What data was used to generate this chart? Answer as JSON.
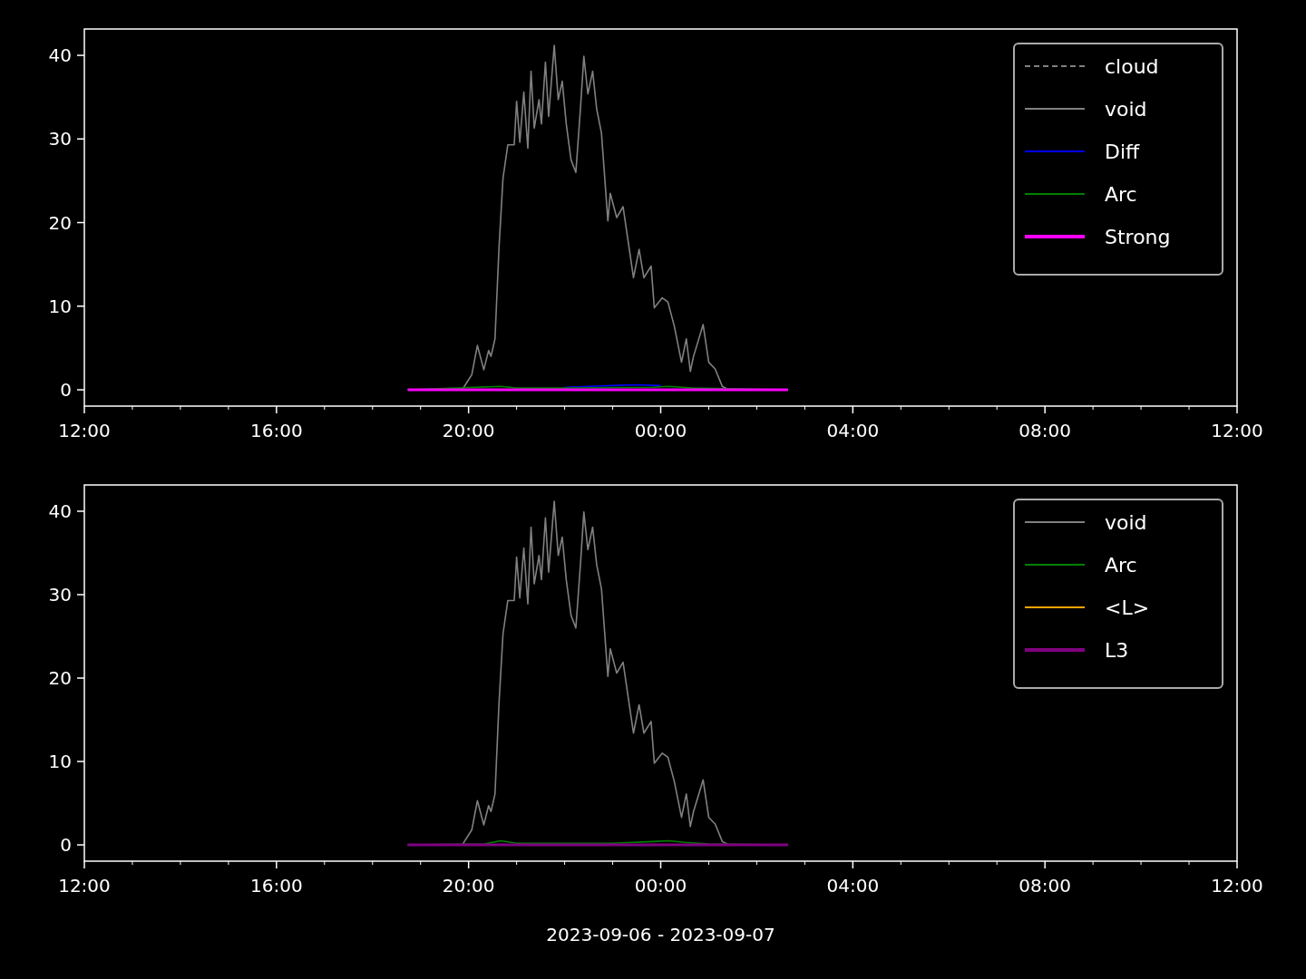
{
  "chart_data": [
    {
      "type": "line",
      "xlim": [
        "2023-09-06T12:00",
        "2023-09-07T12:00"
      ],
      "ylim": [
        -1.95,
        43.15
      ],
      "yticks": [
        0,
        10,
        20,
        30,
        40
      ],
      "xticks": [
        {
          "value": "2023-09-06T12:00",
          "label": "12:00"
        },
        {
          "value": "2023-09-06T13:00",
          "label": null
        },
        {
          "value": "2023-09-06T14:00",
          "label": null
        },
        {
          "value": "2023-09-06T15:00",
          "label": null
        },
        {
          "value": "2023-09-06T16:00",
          "label": "16:00"
        },
        {
          "value": "2023-09-06T17:00",
          "label": null
        },
        {
          "value": "2023-09-06T18:00",
          "label": null
        },
        {
          "value": "2023-09-06T19:00",
          "label": null
        },
        {
          "value": "2023-09-06T20:00",
          "label": "20:00"
        },
        {
          "value": "2023-09-06T21:00",
          "label": null
        },
        {
          "value": "2023-09-06T22:00",
          "label": null
        },
        {
          "value": "2023-09-06T23:00",
          "label": null
        },
        {
          "value": "2023-09-07T00:00",
          "label": "00:00"
        },
        {
          "value": "2023-09-07T01:00",
          "label": null
        },
        {
          "value": "2023-09-07T02:00",
          "label": null
        },
        {
          "value": "2023-09-07T03:00",
          "label": null
        },
        {
          "value": "2023-09-07T04:00",
          "label": "04:00"
        },
        {
          "value": "2023-09-07T05:00",
          "label": null
        },
        {
          "value": "2023-09-07T06:00",
          "label": null
        },
        {
          "value": "2023-09-07T07:00",
          "label": null
        },
        {
          "value": "2023-09-07T08:00",
          "label": "08:00"
        },
        {
          "value": "2023-09-07T09:00",
          "label": null
        },
        {
          "value": "2023-09-07T10:00",
          "label": null
        },
        {
          "value": "2023-09-07T11:00",
          "label": null
        },
        {
          "value": "2023-09-07T12:00",
          "label": "12:00"
        }
      ],
      "legend": "top right",
      "grid": false,
      "series": [
        {
          "name": "cloud",
          "color": "#808080",
          "line_style": "dashed"
        },
        {
          "name": "void",
          "color": "#808080",
          "x": [
            "2023-09-06T18:44",
            "2023-09-06T19:52",
            "2023-09-06T20:04",
            "2023-09-06T20:11",
            "2023-09-06T20:19",
            "2023-09-06T20:25",
            "2023-09-06T20:28",
            "2023-09-06T20:33",
            "2023-09-06T20:38",
            "2023-09-06T20:43",
            "2023-09-06T20:49",
            "2023-09-06T20:57",
            "2023-09-06T21:00",
            "2023-09-06T21:04",
            "2023-09-06T21:09",
            "2023-09-06T21:14",
            "2023-09-06T21:18",
            "2023-09-06T21:22",
            "2023-09-06T21:28",
            "2023-09-06T21:31",
            "2023-09-06T21:36",
            "2023-09-06T21:40",
            "2023-09-06T21:47",
            "2023-09-06T21:52",
            "2023-09-06T21:57",
            "2023-09-06T22:02",
            "2023-09-06T22:08",
            "2023-09-06T22:14",
            "2023-09-06T22:20",
            "2023-09-06T22:24",
            "2023-09-06T22:29",
            "2023-09-06T22:35",
            "2023-09-06T22:40",
            "2023-09-06T22:46",
            "2023-09-06T22:54",
            "2023-09-06T22:57",
            "2023-09-06T23:05",
            "2023-09-06T23:13",
            "2023-09-06T23:20",
            "2023-09-06T23:26",
            "2023-09-06T23:33",
            "2023-09-06T23:39",
            "2023-09-06T23:48",
            "2023-09-06T23:52",
            "2023-09-07T00:02",
            "2023-09-07T00:09",
            "2023-09-07T00:17",
            "2023-09-07T00:26",
            "2023-09-07T00:32",
            "2023-09-07T00:37",
            "2023-09-07T00:41",
            "2023-09-07T00:53",
            "2023-09-07T01:00",
            "2023-09-07T01:08",
            "2023-09-07T01:17",
            "2023-09-07T01:25",
            "2023-09-07T02:39"
          ],
          "values": [
            0,
            0,
            1.8,
            5.3,
            2.4,
            4.7,
            4.0,
            6.1,
            17.0,
            25.3,
            29.3,
            29.3,
            34.5,
            29.6,
            35.6,
            28.9,
            38.1,
            31.3,
            34.7,
            31.8,
            39.2,
            32.7,
            41.2,
            34.7,
            36.9,
            31.8,
            27.5,
            26.0,
            34.0,
            39.9,
            35.4,
            38.1,
            33.6,
            30.7,
            20.2,
            23.5,
            20.6,
            21.9,
            17.3,
            13.4,
            16.8,
            13.4,
            14.8,
            9.8,
            11.0,
            10.5,
            7.6,
            3.3,
            6.1,
            2.2,
            4.0,
            7.8,
            3.3,
            2.5,
            0.4,
            0,
            0
          ]
        },
        {
          "name": "Diff",
          "color": "#0000ff",
          "x": [
            "2023-09-06T22:00",
            "2023-09-06T22:30",
            "2023-09-06T23:00",
            "2023-09-06T23:30",
            "2023-09-07T00:00"
          ],
          "values": [
            0.3,
            0.4,
            0.5,
            0.6,
            0.5
          ]
        },
        {
          "name": "Arc",
          "color": "#008000",
          "x": [
            "2023-09-06T18:44",
            "2023-09-06T20:40",
            "2023-09-06T21:00",
            "2023-09-06T22:00",
            "2023-09-06T23:50",
            "2023-09-07T00:10",
            "2023-09-07T00:40",
            "2023-09-07T02:39"
          ],
          "values": [
            0,
            0.4,
            0.2,
            0.2,
            0.3,
            0.4,
            0.2,
            0
          ]
        },
        {
          "name": "Strong",
          "color": "#ff00ff",
          "x": [
            "2023-09-06T18:44",
            "2023-09-07T02:39"
          ],
          "values": [
            0,
            0
          ]
        }
      ]
    },
    {
      "type": "line",
      "xlabel": "2023-09-06 - 2023-09-07",
      "xlim": [
        "2023-09-06T12:00",
        "2023-09-07T12:00"
      ],
      "ylim": [
        -1.95,
        43.15
      ],
      "yticks": [
        0,
        10,
        20,
        30,
        40
      ],
      "xticks": [
        {
          "value": "2023-09-06T12:00",
          "label": "12:00"
        },
        {
          "value": "2023-09-06T13:00",
          "label": null
        },
        {
          "value": "2023-09-06T14:00",
          "label": null
        },
        {
          "value": "2023-09-06T15:00",
          "label": null
        },
        {
          "value": "2023-09-06T16:00",
          "label": "16:00"
        },
        {
          "value": "2023-09-06T17:00",
          "label": null
        },
        {
          "value": "2023-09-06T18:00",
          "label": null
        },
        {
          "value": "2023-09-06T19:00",
          "label": null
        },
        {
          "value": "2023-09-06T20:00",
          "label": "20:00"
        },
        {
          "value": "2023-09-06T21:00",
          "label": null
        },
        {
          "value": "2023-09-06T22:00",
          "label": null
        },
        {
          "value": "2023-09-06T23:00",
          "label": null
        },
        {
          "value": "2023-09-07T00:00",
          "label": "00:00"
        },
        {
          "value": "2023-09-07T01:00",
          "label": null
        },
        {
          "value": "2023-09-07T02:00",
          "label": null
        },
        {
          "value": "2023-09-07T03:00",
          "label": null
        },
        {
          "value": "2023-09-07T04:00",
          "label": "04:00"
        },
        {
          "value": "2023-09-07T05:00",
          "label": null
        },
        {
          "value": "2023-09-07T06:00",
          "label": null
        },
        {
          "value": "2023-09-07T07:00",
          "label": null
        },
        {
          "value": "2023-09-07T08:00",
          "label": "08:00"
        },
        {
          "value": "2023-09-07T09:00",
          "label": null
        },
        {
          "value": "2023-09-07T10:00",
          "label": null
        },
        {
          "value": "2023-09-07T11:00",
          "label": null
        },
        {
          "value": "2023-09-07T12:00",
          "label": "12:00"
        }
      ],
      "legend": "top right",
      "grid": false,
      "series": [
        {
          "name": "void",
          "color": "#808080",
          "x": [
            "2023-09-06T18:44",
            "2023-09-06T19:52",
            "2023-09-06T20:04",
            "2023-09-06T20:11",
            "2023-09-06T20:19",
            "2023-09-06T20:25",
            "2023-09-06T20:28",
            "2023-09-06T20:33",
            "2023-09-06T20:38",
            "2023-09-06T20:43",
            "2023-09-06T20:49",
            "2023-09-06T20:57",
            "2023-09-06T21:00",
            "2023-09-06T21:04",
            "2023-09-06T21:09",
            "2023-09-06T21:14",
            "2023-09-06T21:18",
            "2023-09-06T21:22",
            "2023-09-06T21:28",
            "2023-09-06T21:31",
            "2023-09-06T21:36",
            "2023-09-06T21:40",
            "2023-09-06T21:47",
            "2023-09-06T21:52",
            "2023-09-06T21:57",
            "2023-09-06T22:02",
            "2023-09-06T22:08",
            "2023-09-06T22:14",
            "2023-09-06T22:20",
            "2023-09-06T22:24",
            "2023-09-06T22:29",
            "2023-09-06T22:35",
            "2023-09-06T22:40",
            "2023-09-06T22:46",
            "2023-09-06T22:54",
            "2023-09-06T22:57",
            "2023-09-06T23:05",
            "2023-09-06T23:13",
            "2023-09-06T23:20",
            "2023-09-06T23:26",
            "2023-09-06T23:33",
            "2023-09-06T23:39",
            "2023-09-06T23:48",
            "2023-09-06T23:52",
            "2023-09-07T00:02",
            "2023-09-07T00:09",
            "2023-09-07T00:17",
            "2023-09-07T00:26",
            "2023-09-07T00:32",
            "2023-09-07T00:37",
            "2023-09-07T00:41",
            "2023-09-07T00:53",
            "2023-09-07T01:00",
            "2023-09-07T01:08",
            "2023-09-07T01:17",
            "2023-09-07T01:25",
            "2023-09-07T02:39"
          ],
          "values": [
            0,
            0,
            1.8,
            5.3,
            2.4,
            4.7,
            4.0,
            6.1,
            17.0,
            25.3,
            29.3,
            29.3,
            34.5,
            29.6,
            35.6,
            28.9,
            38.1,
            31.3,
            34.7,
            31.8,
            39.2,
            32.7,
            41.2,
            34.7,
            36.9,
            31.8,
            27.5,
            26.0,
            34.0,
            39.9,
            35.4,
            38.1,
            33.6,
            30.7,
            20.2,
            23.5,
            20.6,
            21.9,
            17.3,
            13.4,
            16.8,
            13.4,
            14.8,
            9.8,
            11.0,
            10.5,
            7.6,
            3.3,
            6.1,
            2.2,
            4.0,
            7.8,
            3.3,
            2.5,
            0.4,
            0,
            0
          ]
        },
        {
          "name": "Arc",
          "color": "#008000",
          "x": [
            "2023-09-06T18:44",
            "2023-09-06T20:20",
            "2023-09-06T20:40",
            "2023-09-06T21:00",
            "2023-09-06T22:00",
            "2023-09-06T23:00",
            "2023-09-06T23:50",
            "2023-09-07T00:10",
            "2023-09-07T00:30",
            "2023-09-07T01:00",
            "2023-09-07T02:39"
          ],
          "values": [
            0,
            0.1,
            0.5,
            0.2,
            0.2,
            0.2,
            0.4,
            0.5,
            0.3,
            0.1,
            0
          ]
        },
        {
          "name": "<L>",
          "color": "#ffa500"
        },
        {
          "name": "L3",
          "color": "#800080",
          "x": [
            "2023-09-06T18:44",
            "2023-09-07T02:39"
          ],
          "values": [
            0,
            0
          ]
        }
      ]
    }
  ]
}
